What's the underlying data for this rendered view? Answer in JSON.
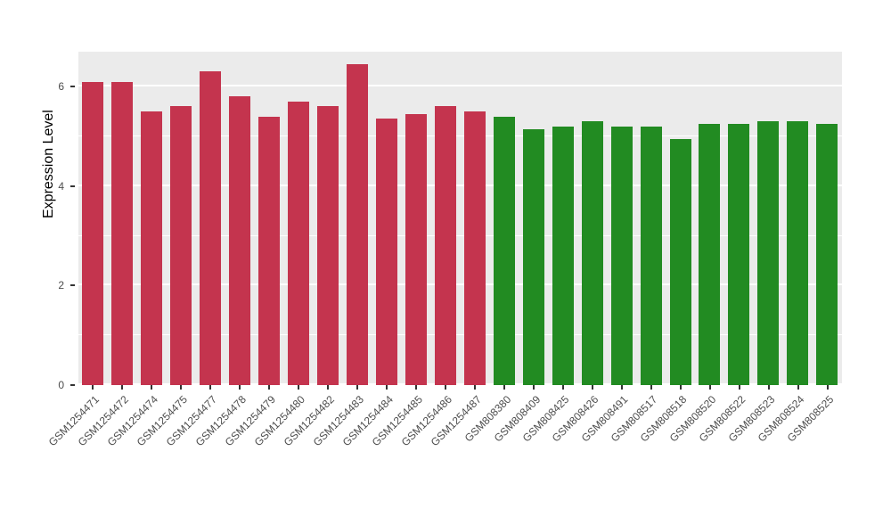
{
  "chart_data": {
    "type": "bar",
    "title": "",
    "xlabel": "",
    "ylabel": "Expression Level",
    "ylim": [
      0,
      6.7
    ],
    "yticks": [
      0,
      2,
      4,
      6
    ],
    "yticks_minor": [
      1,
      3,
      5
    ],
    "grid": true,
    "legend_position": "none",
    "panel_background": "#EBEBEB",
    "grid_color": "#FFFFFF",
    "categories": [
      "GSM1254471",
      "GSM1254472",
      "GSM1254474",
      "GSM1254475",
      "GSM1254477",
      "GSM1254478",
      "GSM1254479",
      "GSM1254480",
      "GSM1254482",
      "GSM1254483",
      "GSM1254484",
      "GSM1254485",
      "GSM1254486",
      "GSM1254487",
      "GSM808380",
      "GSM808409",
      "GSM808425",
      "GSM808426",
      "GSM808491",
      "GSM808517",
      "GSM808518",
      "GSM808520",
      "GSM808522",
      "GSM808523",
      "GSM808524",
      "GSM808525"
    ],
    "values": [
      6.1,
      6.1,
      5.5,
      5.6,
      6.3,
      5.8,
      5.4,
      5.7,
      5.6,
      6.45,
      5.35,
      5.45,
      5.6,
      5.5,
      5.4,
      5.15,
      5.2,
      5.3,
      5.2,
      5.2,
      4.95,
      5.25,
      5.25,
      5.3,
      5.3,
      5.25
    ],
    "groups": [
      "red",
      "red",
      "red",
      "red",
      "red",
      "red",
      "red",
      "red",
      "red",
      "red",
      "red",
      "red",
      "red",
      "red",
      "green",
      "green",
      "green",
      "green",
      "green",
      "green",
      "green",
      "green",
      "green",
      "green",
      "green",
      "green"
    ],
    "colors": {
      "red": "#C4344E",
      "green": "#228B22"
    }
  }
}
